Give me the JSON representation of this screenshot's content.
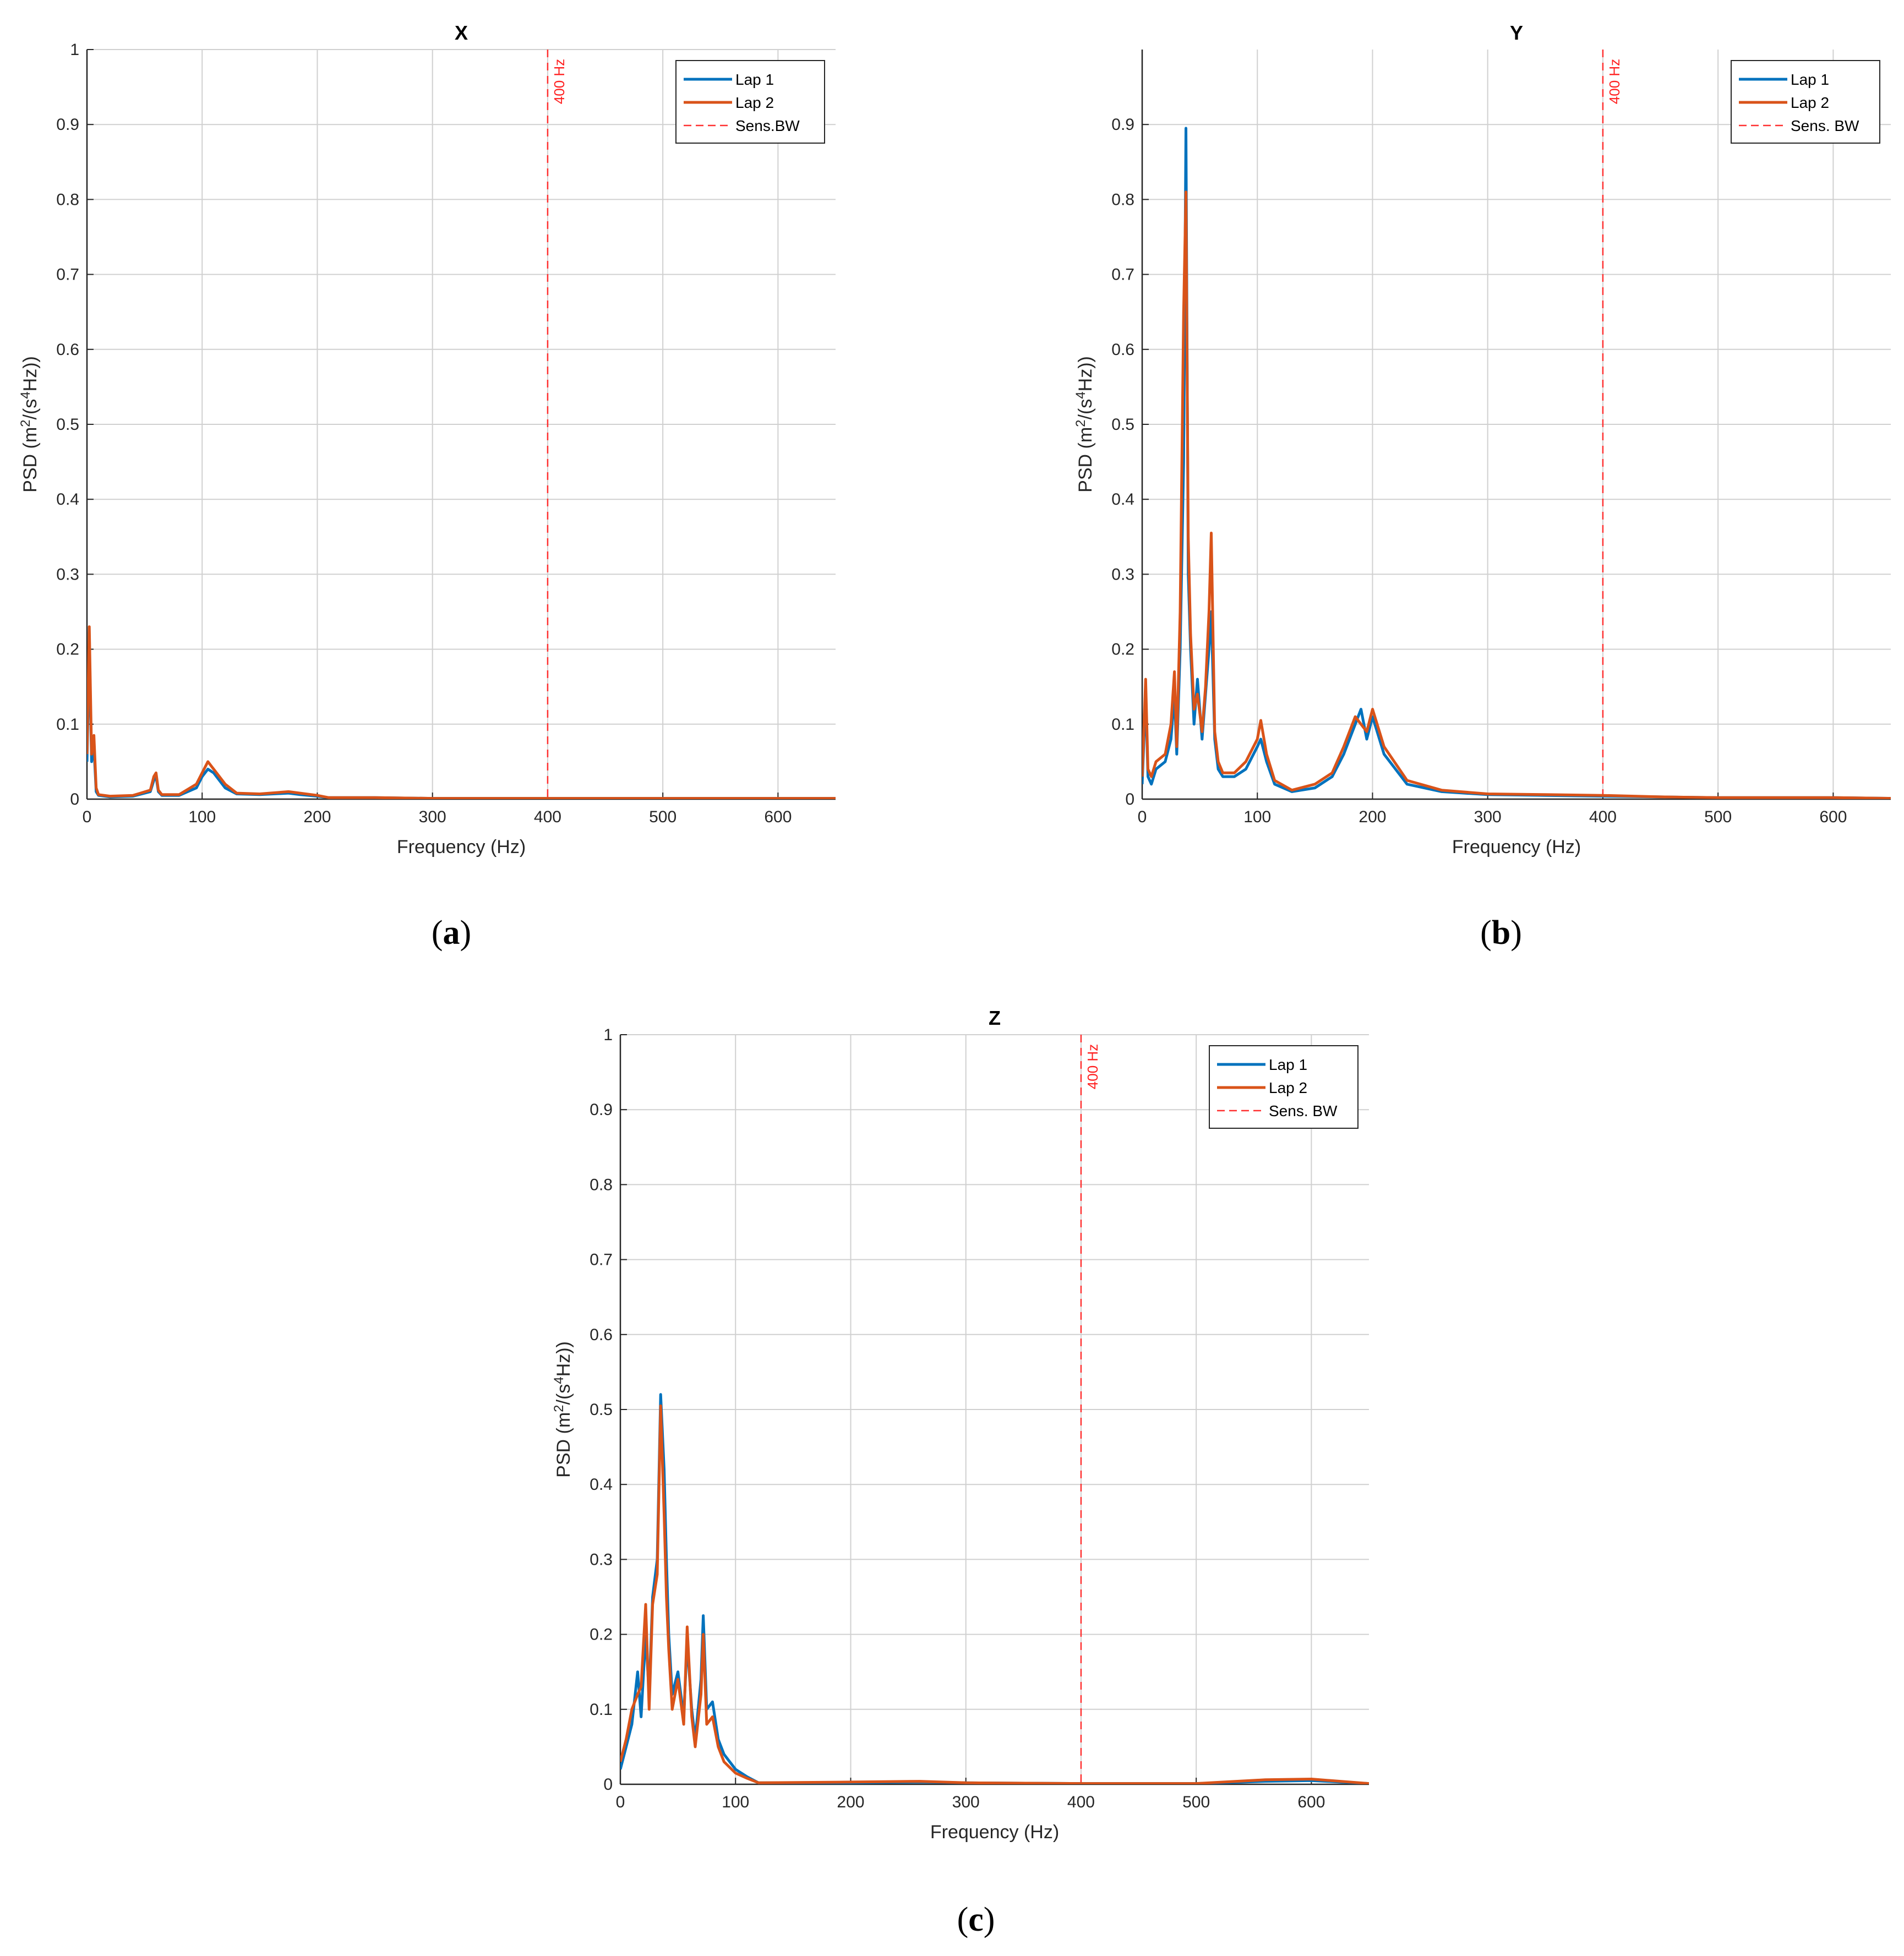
{
  "panels": [
    {
      "caption_letter": "a",
      "xlabel": "Frequency (Hz)",
      "ylabel_main": "PSD (m",
      "ylabel_sup1": "2",
      "ylabel_mid": "/(s",
      "ylabel_sup2": "4",
      "ylabel_end": "Hz))",
      "bw_label": "400 Hz",
      "legend": [
        "Lap 1",
        "Lap 2",
        "Sens.BW"
      ]
    },
    {
      "caption_letter": "b",
      "xlabel": "Frequency (Hz)",
      "ylabel_main": "PSD (m",
      "ylabel_sup1": "2",
      "ylabel_mid": "/(s",
      "ylabel_sup2": "4",
      "ylabel_end": "Hz))",
      "bw_label": "400 Hz",
      "legend": [
        "Lap 1",
        "Lap 2",
        "Sens. BW"
      ]
    },
    {
      "caption_letter": "c",
      "xlabel": "Frequency (Hz)",
      "ylabel_main": "PSD (m",
      "ylabel_sup1": "2",
      "ylabel_mid": "/(s",
      "ylabel_sup2": "4",
      "ylabel_end": "Hz))",
      "bw_label": "400 Hz",
      "legend": [
        "Lap 1",
        "Lap 2",
        "Sens. BW"
      ]
    }
  ],
  "colors": {
    "lap1": "#0072bd",
    "lap2": "#d95319",
    "bw": "#ff3030",
    "grid": "#d0d0d0"
  },
  "chart_data": [
    {
      "type": "line",
      "title": "X",
      "xlabel": "Frequency (Hz)",
      "ylabel": "PSD (m2/(s4Hz))",
      "xlim": [
        0,
        650
      ],
      "ylim": [
        0,
        1
      ],
      "xticks": [
        0,
        100,
        200,
        300,
        400,
        500,
        600
      ],
      "yticks": [
        0,
        0.1,
        0.2,
        0.3,
        0.4,
        0.5,
        0.6,
        0.7,
        0.8,
        0.9,
        1
      ],
      "grid": true,
      "legend_position": "top-right",
      "vline": {
        "x": 400,
        "name": "Sens.BW",
        "label": "400 Hz"
      },
      "series": [
        {
          "name": "Lap 1",
          "x": [
            0,
            2,
            4,
            6,
            8,
            10,
            20,
            40,
            55,
            58,
            60,
            62,
            65,
            80,
            95,
            100,
            105,
            110,
            120,
            130,
            150,
            175,
            185,
            200,
            210,
            250,
            300,
            400,
            500,
            600,
            650
          ],
          "y": [
            0.05,
            0.2,
            0.05,
            0.07,
            0.01,
            0.005,
            0.003,
            0.004,
            0.01,
            0.025,
            0.03,
            0.01,
            0.005,
            0.005,
            0.015,
            0.03,
            0.04,
            0.035,
            0.015,
            0.007,
            0.006,
            0.008,
            0.006,
            0.004,
            0.002,
            0.002,
            0.001,
            0.001,
            0.001,
            0.001,
            0.001
          ]
        },
        {
          "name": "Lap 2",
          "x": [
            0,
            2,
            4,
            6,
            8,
            10,
            20,
            40,
            55,
            58,
            60,
            62,
            65,
            80,
            95,
            100,
            105,
            110,
            120,
            130,
            150,
            175,
            185,
            200,
            210,
            250,
            300,
            400,
            500,
            600,
            650
          ],
          "y": [
            0.06,
            0.23,
            0.06,
            0.085,
            0.015,
            0.006,
            0.004,
            0.005,
            0.012,
            0.03,
            0.035,
            0.012,
            0.006,
            0.006,
            0.02,
            0.035,
            0.05,
            0.04,
            0.02,
            0.008,
            0.007,
            0.01,
            0.008,
            0.005,
            0.002,
            0.002,
            0.001,
            0.001,
            0.001,
            0.001,
            0.001
          ]
        }
      ]
    },
    {
      "type": "line",
      "title": "Y",
      "xlabel": "Frequency (Hz)",
      "ylabel": "PSD (m2/(s4Hz))",
      "xlim": [
        0,
        650
      ],
      "ylim": [
        0,
        1
      ],
      "xticks": [
        0,
        100,
        200,
        300,
        400,
        500,
        600
      ],
      "yticks": [
        0,
        0.1,
        0.2,
        0.3,
        0.4,
        0.5,
        0.6,
        0.7,
        0.8,
        0.9
      ],
      "grid": true,
      "legend_position": "top-right",
      "vline": {
        "x": 400,
        "name": "Sens. BW",
        "label": "400 Hz"
      },
      "series": [
        {
          "name": "Lap 1",
          "x": [
            0,
            3,
            5,
            8,
            12,
            20,
            25,
            28,
            30,
            33,
            36,
            38,
            40,
            42,
            45,
            48,
            52,
            55,
            58,
            60,
            63,
            66,
            70,
            80,
            90,
            100,
            103,
            108,
            115,
            130,
            150,
            165,
            175,
            185,
            190,
            195,
            200,
            210,
            230,
            260,
            300,
            350,
            400,
            450,
            500,
            600,
            650
          ],
          "y": [
            0.02,
            0.14,
            0.03,
            0.02,
            0.04,
            0.05,
            0.08,
            0.14,
            0.06,
            0.2,
            0.45,
            0.895,
            0.3,
            0.2,
            0.1,
            0.16,
            0.08,
            0.14,
            0.2,
            0.25,
            0.08,
            0.04,
            0.03,
            0.03,
            0.04,
            0.07,
            0.08,
            0.05,
            0.02,
            0.01,
            0.015,
            0.03,
            0.06,
            0.1,
            0.12,
            0.08,
            0.11,
            0.06,
            0.02,
            0.01,
            0.006,
            0.005,
            0.004,
            0.003,
            0.002,
            0.002,
            0.001
          ]
        },
        {
          "name": "Lap 2",
          "x": [
            0,
            3,
            5,
            8,
            12,
            20,
            25,
            28,
            30,
            33,
            36,
            38,
            40,
            42,
            45,
            48,
            52,
            55,
            58,
            60,
            63,
            66,
            70,
            80,
            90,
            100,
            103,
            108,
            115,
            130,
            150,
            165,
            175,
            185,
            190,
            195,
            200,
            210,
            230,
            260,
            300,
            350,
            400,
            450,
            500,
            600,
            650
          ],
          "y": [
            0.03,
            0.16,
            0.04,
            0.03,
            0.05,
            0.06,
            0.1,
            0.17,
            0.07,
            0.25,
            0.65,
            0.81,
            0.35,
            0.22,
            0.12,
            0.14,
            0.09,
            0.15,
            0.25,
            0.355,
            0.09,
            0.05,
            0.035,
            0.035,
            0.05,
            0.08,
            0.105,
            0.06,
            0.025,
            0.012,
            0.02,
            0.035,
            0.07,
            0.11,
            0.1,
            0.09,
            0.12,
            0.07,
            0.025,
            0.012,
            0.007,
            0.006,
            0.005,
            0.003,
            0.002,
            0.002,
            0.001
          ]
        }
      ]
    },
    {
      "type": "line",
      "title": "Z",
      "xlabel": "Frequency (Hz)",
      "ylabel": "PSD (m2/(s4Hz))",
      "xlim": [
        0,
        650
      ],
      "ylim": [
        0,
        1
      ],
      "xticks": [
        0,
        100,
        200,
        300,
        400,
        500,
        600
      ],
      "yticks": [
        0,
        0.1,
        0.2,
        0.3,
        0.4,
        0.5,
        0.6,
        0.7,
        0.8,
        0.9,
        1
      ],
      "grid": true,
      "legend_position": "top-right",
      "vline": {
        "x": 400,
        "name": "Sens. BW",
        "label": "400 Hz"
      },
      "series": [
        {
          "name": "Lap 1",
          "x": [
            0,
            5,
            10,
            15,
            18,
            22,
            25,
            28,
            32,
            35,
            38,
            40,
            42,
            45,
            50,
            55,
            58,
            62,
            65,
            70,
            72,
            75,
            80,
            85,
            90,
            100,
            110,
            120,
            200,
            260,
            300,
            400,
            500,
            560,
            600,
            650
          ],
          "y": [
            0.02,
            0.05,
            0.08,
            0.15,
            0.09,
            0.2,
            0.12,
            0.25,
            0.3,
            0.52,
            0.42,
            0.3,
            0.2,
            0.12,
            0.15,
            0.09,
            0.19,
            0.1,
            0.06,
            0.14,
            0.225,
            0.1,
            0.11,
            0.06,
            0.04,
            0.02,
            0.01,
            0.002,
            0.002,
            0.003,
            0.002,
            0.001,
            0.001,
            0.004,
            0.005,
            0.001
          ]
        },
        {
          "name": "Lap 2",
          "x": [
            0,
            5,
            10,
            15,
            18,
            22,
            25,
            28,
            32,
            35,
            38,
            40,
            42,
            45,
            50,
            55,
            58,
            62,
            65,
            70,
            72,
            75,
            80,
            85,
            90,
            100,
            110,
            120,
            200,
            260,
            300,
            400,
            500,
            560,
            600,
            650
          ],
          "y": [
            0.03,
            0.06,
            0.1,
            0.12,
            0.13,
            0.24,
            0.1,
            0.24,
            0.28,
            0.505,
            0.36,
            0.25,
            0.18,
            0.1,
            0.14,
            0.08,
            0.21,
            0.09,
            0.05,
            0.12,
            0.2,
            0.08,
            0.09,
            0.05,
            0.03,
            0.015,
            0.008,
            0.002,
            0.003,
            0.004,
            0.002,
            0.001,
            0.001,
            0.006,
            0.007,
            0.001
          ]
        }
      ]
    }
  ]
}
